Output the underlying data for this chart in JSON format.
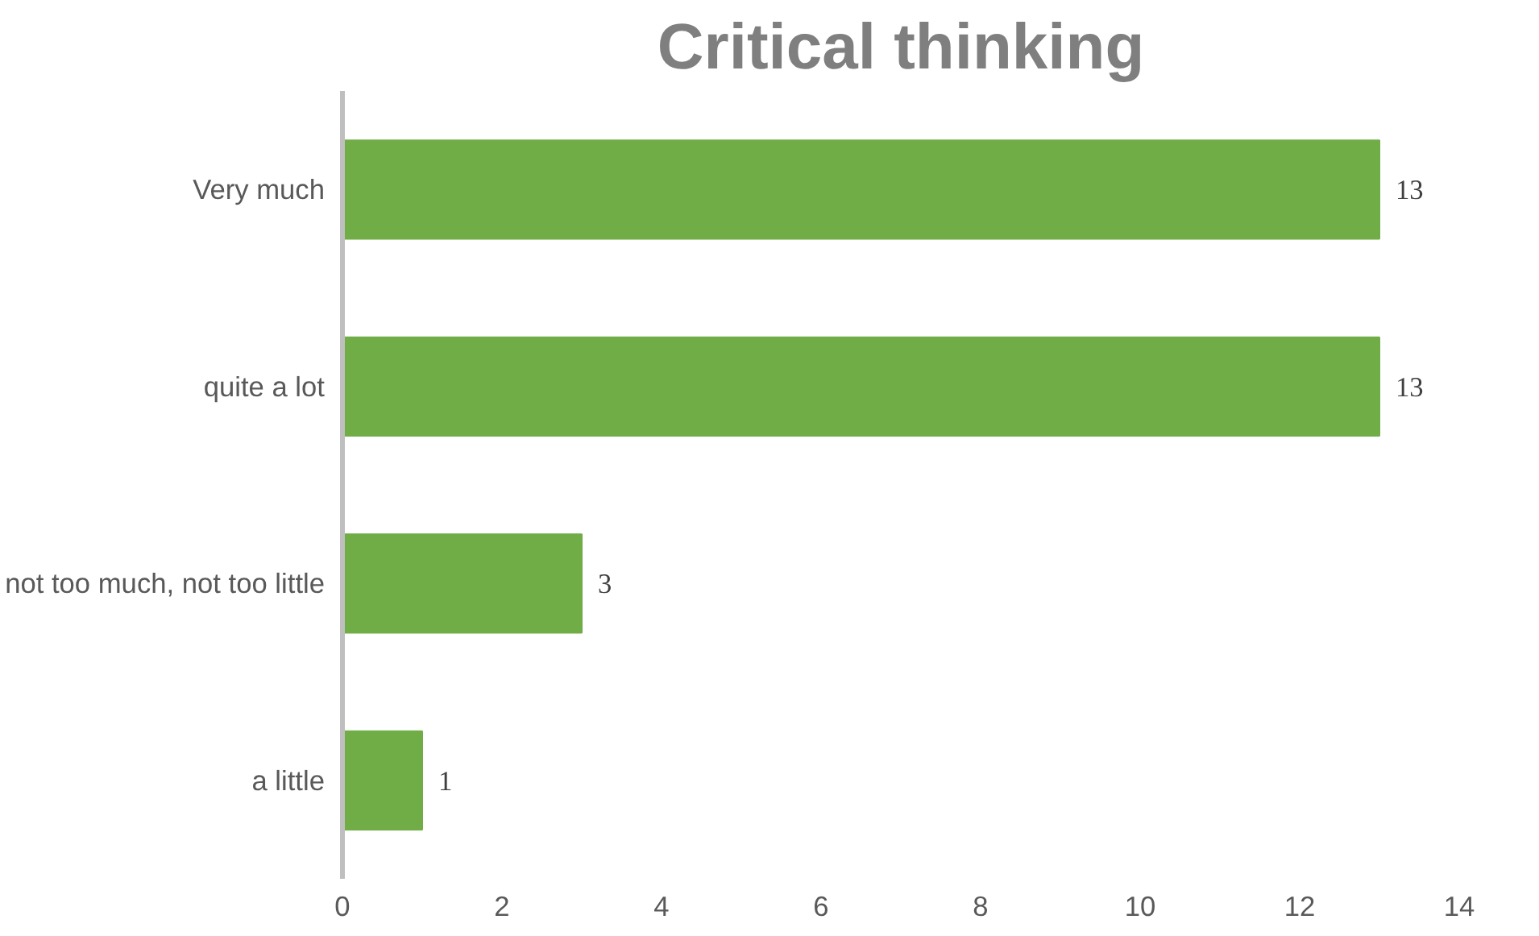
{
  "chart_data": {
    "type": "bar",
    "orientation": "horizontal",
    "title": "Critical thinking",
    "categories": [
      "Very much",
      "quite a lot",
      "not too much, not too little",
      "a little"
    ],
    "values": [
      13,
      13,
      3,
      1
    ],
    "color": "#70ad47",
    "xlim": [
      0,
      14
    ],
    "xticks": [
      0,
      2,
      4,
      6,
      8,
      10,
      12,
      14
    ],
    "grid": false,
    "data_labels": true
  }
}
